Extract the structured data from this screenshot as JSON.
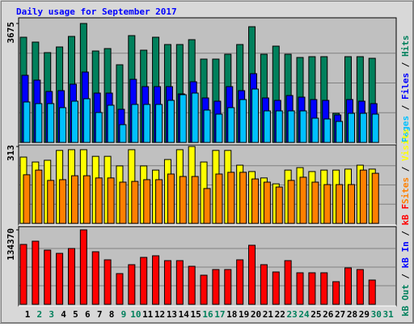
{
  "title": "Daily usage for September 2017",
  "separator": " / ",
  "categories": [
    "1",
    "2",
    "3",
    "4",
    "5",
    "6",
    "7",
    "8",
    "9",
    "10",
    "11",
    "12",
    "13",
    "14",
    "15",
    "16",
    "17",
    "18",
    "19",
    "20",
    "21",
    "22",
    "23",
    "24",
    "25",
    "26",
    "27",
    "28",
    "29",
    "30",
    "31"
  ],
  "category_colors": [
    "#000000",
    "#00805c",
    "#00805c",
    "#000000",
    "#000000",
    "#000000",
    "#000000",
    "#000000",
    "#00805c",
    "#00805c",
    "#000000",
    "#000000",
    "#000000",
    "#000000",
    "#000000",
    "#00805c",
    "#00805c",
    "#000000",
    "#000000",
    "#000000",
    "#000000",
    "#000000",
    "#00805c",
    "#00805c",
    "#000000",
    "#000000",
    "#000000",
    "#000000",
    "#000000",
    "#00805c",
    "#00805c"
  ],
  "chart_data": [
    {
      "type": "bar",
      "ylim": [
        0,
        3675
      ],
      "yticks": [
        3675
      ],
      "series": [
        {
          "name": "Hits",
          "color": "#00805c",
          "values": [
            3250,
            3100,
            2775,
            2950,
            3275,
            3675,
            2825,
            2900,
            2400,
            3300,
            2850,
            3250,
            3025,
            3025,
            3175,
            2575,
            2575,
            2725,
            3025,
            3575,
            2725,
            2975,
            2725,
            2625,
            2650,
            2650,
            900,
            2650,
            2650,
            2600,
            null
          ]
        },
        {
          "name": "Files",
          "color": "#0000ff",
          "values": [
            2075,
            1925,
            1575,
            1600,
            1800,
            2175,
            1525,
            1525,
            1025,
            1950,
            1725,
            1725,
            1725,
            1500,
            1875,
            1375,
            1275,
            1725,
            1600,
            2125,
            1375,
            1300,
            1450,
            1400,
            1325,
            1300,
            850,
            1325,
            1275,
            1200,
            null
          ]
        },
        {
          "name": "Pages",
          "color": "#00c0ff",
          "values": [
            1250,
            1200,
            1200,
            1075,
            1275,
            1350,
            925,
            1150,
            550,
            1175,
            1175,
            1175,
            1300,
            1475,
            1525,
            1000,
            875,
            1075,
            1325,
            1650,
            975,
            975,
            975,
            975,
            750,
            725,
            650,
            900,
            900,
            875,
            null
          ]
        }
      ]
    },
    {
      "type": "bar",
      "ylim": [
        0,
        313
      ],
      "yticks": [
        313
      ],
      "series": [
        {
          "name": "Visits",
          "color": "#ffff00",
          "values": [
            270,
            250,
            257,
            297,
            300,
            300,
            273,
            273,
            234,
            300,
            234,
            217,
            260,
            300,
            313,
            250,
            297,
            297,
            237,
            211,
            185,
            161,
            217,
            227,
            211,
            217,
            217,
            221,
            237,
            221,
            null
          ]
        },
        {
          "name": "Sites",
          "color": "#ff8000",
          "values": [
            198,
            217,
            175,
            178,
            194,
            194,
            185,
            185,
            168,
            171,
            178,
            178,
            201,
            191,
            191,
            142,
            201,
            208,
            208,
            181,
            168,
            148,
            175,
            188,
            168,
            158,
            158,
            158,
            217,
            204,
            null
          ]
        }
      ]
    },
    {
      "type": "bar",
      "ylim": [
        0,
        134370
      ],
      "yticks": [
        134370
      ],
      "series": [
        {
          "name": "kB F",
          "color": "#ff0000",
          "values": [
            108080,
            113920,
            97850,
            92010,
            100780,
            134370,
            94930,
            80330,
            55500,
            71560,
            84710,
            87630,
            78870,
            78870,
            68650,
            52580,
            62800,
            62800,
            80330,
            106620,
            71560,
            58420,
            78870,
            56960,
            56960,
            56960,
            40890,
            65720,
            62800,
            43820,
            null
          ]
        },
        {
          "name": "kB In",
          "color": "#0000ff"
        },
        {
          "name": "kB Out",
          "color": "#00805c"
        }
      ]
    }
  ]
}
